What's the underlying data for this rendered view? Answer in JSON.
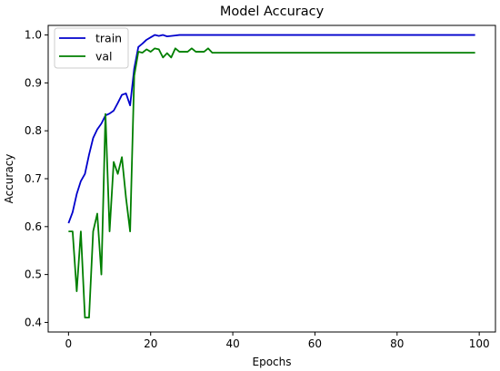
{
  "chart_data": {
    "type": "line",
    "title": "Model Accuracy",
    "xlabel": "Epochs",
    "ylabel": "Accuracy",
    "xlim": [
      -4.95,
      103.95
    ],
    "ylim": [
      0.38,
      1.02
    ],
    "xticks": [
      0,
      20,
      40,
      60,
      80,
      100
    ],
    "yticks": [
      0.4,
      0.5,
      0.6,
      0.7,
      0.8,
      0.9,
      1.0
    ],
    "ytick_labels": [
      "0.4",
      "0.5",
      "0.6",
      "0.7",
      "0.8",
      "0.9",
      "1.0"
    ],
    "grid": false,
    "legend_position": "top-left",
    "series": [
      {
        "name": "train",
        "color": "#0000cc",
        "x": [
          0,
          1,
          2,
          3,
          4,
          5,
          6,
          7,
          8,
          9,
          10,
          11,
          12,
          13,
          14,
          15,
          16,
          17,
          18,
          19,
          20,
          21,
          22,
          23,
          24,
          25,
          26,
          27,
          28,
          29,
          30,
          35,
          40,
          45,
          50,
          55,
          60,
          65,
          70,
          75,
          80,
          85,
          90,
          95,
          99
        ],
        "y": [
          0.607,
          0.63,
          0.668,
          0.695,
          0.71,
          0.75,
          0.785,
          0.803,
          0.815,
          0.832,
          0.836,
          0.842,
          0.858,
          0.875,
          0.878,
          0.853,
          0.93,
          0.975,
          0.982,
          0.99,
          0.995,
          1.0,
          0.998,
          1.0,
          0.997,
          0.998,
          0.999,
          1.0,
          1.0,
          1.0,
          1.0,
          1.0,
          1.0,
          1.0,
          1.0,
          1.0,
          1.0,
          1.0,
          1.0,
          1.0,
          1.0,
          1.0,
          1.0,
          1.0,
          1.0
        ]
      },
      {
        "name": "val",
        "color": "#007f00",
        "x": [
          0,
          1,
          2,
          3,
          4,
          5,
          6,
          7,
          8,
          9,
          10,
          11,
          12,
          13,
          14,
          15,
          16,
          17,
          18,
          19,
          20,
          21,
          22,
          23,
          24,
          25,
          26,
          27,
          28,
          29,
          30,
          31,
          32,
          33,
          34,
          35,
          36,
          40,
          50,
          60,
          70,
          80,
          90,
          99
        ],
        "y": [
          0.59,
          0.59,
          0.465,
          0.59,
          0.41,
          0.41,
          0.59,
          0.627,
          0.5,
          0.835,
          0.59,
          0.735,
          0.71,
          0.745,
          0.66,
          0.59,
          0.915,
          0.965,
          0.963,
          0.97,
          0.965,
          0.972,
          0.97,
          0.953,
          0.962,
          0.953,
          0.972,
          0.965,
          0.965,
          0.965,
          0.972,
          0.965,
          0.965,
          0.965,
          0.972,
          0.963,
          0.963,
          0.963,
          0.963,
          0.963,
          0.963,
          0.963,
          0.963,
          0.963
        ]
      }
    ]
  }
}
